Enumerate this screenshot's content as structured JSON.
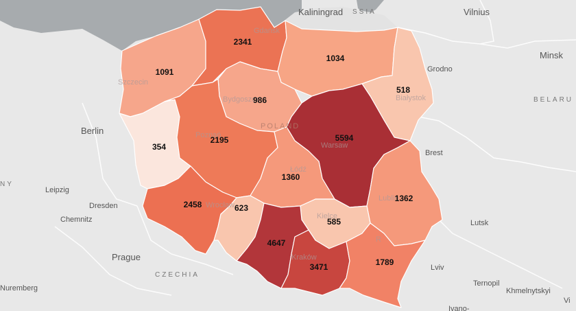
{
  "map": {
    "colors": {
      "background": "#e8e8e8",
      "sea": "#a7abae",
      "scale": [
        "#fbe6dd",
        "#f9c6ae",
        "#f6a68b",
        "#f18266",
        "#eb6d53",
        "#c8463f",
        "#a92f35"
      ]
    },
    "places": [
      {
        "id": "kaliningrad",
        "text": "Kaliningrad"
      },
      {
        "id": "russia",
        "text": "SSIA"
      },
      {
        "id": "vilnius",
        "text": "Vilnius"
      },
      {
        "id": "minsk",
        "text": "Minsk"
      },
      {
        "id": "belarus",
        "text": "BELARU"
      },
      {
        "id": "grodno",
        "text": "Grodno"
      },
      {
        "id": "brest",
        "text": "Brest"
      },
      {
        "id": "berlin",
        "text": "Berlin"
      },
      {
        "id": "germany",
        "text": "NY"
      },
      {
        "id": "leipzig",
        "text": "Leipzig"
      },
      {
        "id": "dresden",
        "text": "Dresden"
      },
      {
        "id": "chemnitz",
        "text": "Chemnitz"
      },
      {
        "id": "prague",
        "text": "Prague"
      },
      {
        "id": "czechia",
        "text": "CZECHIA"
      },
      {
        "id": "nuremberg",
        "text": "Nuremberg"
      },
      {
        "id": "lutsk",
        "text": "Lutsk"
      },
      {
        "id": "lviv",
        "text": "Lviv"
      },
      {
        "id": "ternopil",
        "text": "Ternopil"
      },
      {
        "id": "khmelnytskyi",
        "text": "Khmelnytskyi"
      },
      {
        "id": "ivano",
        "text": "Ivano-"
      },
      {
        "id": "vi",
        "text": "Vi"
      },
      {
        "id": "poland",
        "text": "POLAND"
      },
      {
        "id": "gdansk",
        "text": "Gdańsk"
      },
      {
        "id": "szczecin",
        "text": "Szczecin"
      },
      {
        "id": "bydgoszcz",
        "text": "Bydgoszcz"
      },
      {
        "id": "bialystok",
        "text": "Białystok"
      },
      {
        "id": "warsaw",
        "text": "Warsaw"
      },
      {
        "id": "poznan",
        "text": "Poznań"
      },
      {
        "id": "lodz",
        "text": "Łódź"
      },
      {
        "id": "wroclaw",
        "text": "Wrocław"
      },
      {
        "id": "lublin",
        "text": "Lublin"
      },
      {
        "id": "kielce",
        "text": "Kielce"
      },
      {
        "id": "krakow",
        "text": "Kraków"
      },
      {
        "id": "r",
        "text": "R"
      }
    ],
    "regions": [
      {
        "id": "zachodniopomorskie",
        "value": 1091,
        "label": "1091",
        "color": "#f6a68b"
      },
      {
        "id": "pomorskie",
        "value": 2341,
        "label": "2341",
        "color": "#eb7354"
      },
      {
        "id": "warminsko-mazurskie",
        "value": 1034,
        "label": "1034",
        "color": "#f7a585"
      },
      {
        "id": "podlaskie",
        "value": 518,
        "label": "518",
        "color": "#f9c6ae"
      },
      {
        "id": "kujawsko-pomorskie",
        "value": 986,
        "label": "986",
        "color": "#f6a68b"
      },
      {
        "id": "lubuskie",
        "value": 354,
        "label": "354",
        "color": "#fbe6dd"
      },
      {
        "id": "wielkopolskie",
        "value": 2195,
        "label": "2195",
        "color": "#ee7a58"
      },
      {
        "id": "mazowieckie",
        "value": 5594,
        "label": "5594",
        "color": "#a92f35"
      },
      {
        "id": "lodzkie",
        "value": 1360,
        "label": "1360",
        "color": "#f5997b"
      },
      {
        "id": "lubelskie",
        "value": 1362,
        "label": "1362",
        "color": "#f5997b"
      },
      {
        "id": "dolnoslaskie",
        "value": 2458,
        "label": "2458",
        "color": "#ec7052"
      },
      {
        "id": "opolskie",
        "value": 623,
        "label": "623",
        "color": "#f9c6ae"
      },
      {
        "id": "swietokrzyskie",
        "value": 585,
        "label": "585",
        "color": "#f9c6ae"
      },
      {
        "id": "slaskie",
        "value": 4647,
        "label": "4647",
        "color": "#b2363a"
      },
      {
        "id": "malopolskie",
        "value": 3471,
        "label": "3471",
        "color": "#c8463f"
      },
      {
        "id": "podkarpackie",
        "value": 1789,
        "label": "1789",
        "color": "#f18266"
      }
    ]
  }
}
